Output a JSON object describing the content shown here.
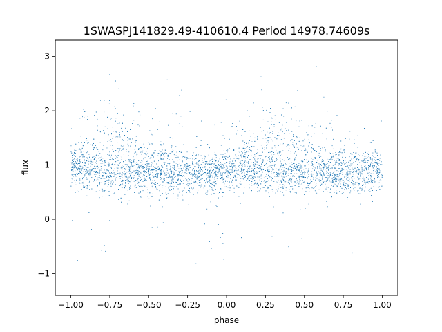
{
  "chart_data": {
    "type": "scatter",
    "title": "1SWASPJ141829.49-410610.4 Period 14978.74609s",
    "xlabel": "phase",
    "ylabel": "flux",
    "xlim": [
      -1.1,
      1.1
    ],
    "ylim": [
      -1.4,
      3.3
    ],
    "xticks": [
      {
        "value": -1.0,
        "label": "−1.00"
      },
      {
        "value": -0.75,
        "label": "−0.75"
      },
      {
        "value": -0.5,
        "label": "−0.50"
      },
      {
        "value": -0.25,
        "label": "−0.25"
      },
      {
        "value": 0.0,
        "label": "0.00"
      },
      {
        "value": 0.25,
        "label": "0.25"
      },
      {
        "value": 0.5,
        "label": "0.50"
      },
      {
        "value": 0.75,
        "label": "0.75"
      },
      {
        "value": 1.0,
        "label": "1.00"
      }
    ],
    "yticks": [
      {
        "value": -1,
        "label": "−1"
      },
      {
        "value": 0,
        "label": "0"
      },
      {
        "value": 1,
        "label": "1"
      },
      {
        "value": 2,
        "label": "2"
      },
      {
        "value": 3,
        "label": "3"
      }
    ],
    "grid": false,
    "marker_color": "#1f77b4",
    "series": [
      {
        "x": [
          -1.0,
          -0.9,
          -0.8,
          -0.75,
          -0.7,
          -0.6,
          -0.5,
          -0.4,
          -0.3,
          -0.25,
          -0.2,
          -0.1,
          0.0,
          0.1,
          0.2,
          0.25,
          0.3,
          0.4,
          0.5,
          0.6,
          0.7,
          0.8,
          0.9,
          1.0
        ],
        "values_core": [
          0.88,
          0.86,
          0.85,
          0.84,
          0.83,
          0.82,
          0.81,
          0.8,
          0.79,
          0.79,
          0.8,
          0.82,
          0.85,
          0.86,
          0.86,
          0.85,
          0.84,
          0.83,
          0.82,
          0.81,
          0.8,
          0.81,
          0.83,
          0.86
        ],
        "values_upper_band": [
          1.15,
          1.4,
          1.72,
          1.8,
          1.7,
          1.55,
          1.4,
          1.25,
          1.12,
          1.05,
          1.0,
          1.0,
          1.05,
          1.25,
          1.65,
          1.8,
          1.72,
          1.58,
          1.42,
          1.3,
          1.2,
          1.15,
          1.15,
          1.15
        ]
      }
    ]
  }
}
